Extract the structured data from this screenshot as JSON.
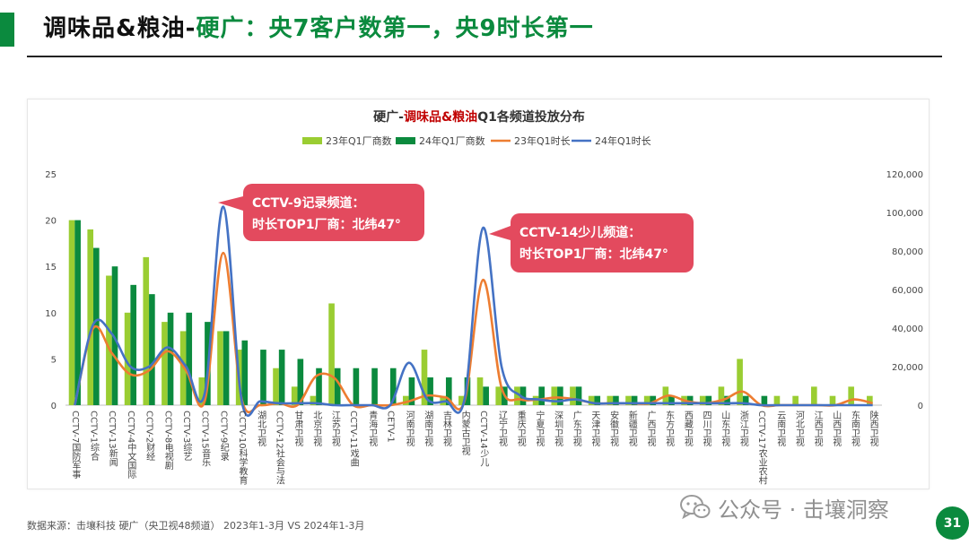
{
  "header": {
    "title_main": "调味品&粮油-",
    "title_sub": "硬广：央7客户数第一，央9时长第一"
  },
  "footer": {
    "source": "数据来源：击壤科技   硬广（央卫视48频道）   2023年1-3月 VS 2024年1-3月",
    "watermark": "公众号 · 击壤洞察",
    "page_number": "31"
  },
  "colors": {
    "accent": "#0b8a3e",
    "bar_2023": "#9acd32",
    "bar_2024": "#0b8a3e",
    "line_2023": "#ed7d31",
    "line_2024": "#4472c4",
    "callout": "#e34a5e",
    "title_highlight": "#c00000"
  },
  "chart_data": {
    "type": "bar",
    "title_prefix": "硬广-",
    "title_highlight": "调味品&粮油",
    "title_suffix": "Q1各频道投放分布",
    "legend": [
      "23年Q1厂商数",
      "24年Q1厂商数",
      "23年Q1时长",
      "24年Q1时长"
    ],
    "legend_position": "top",
    "y_left": {
      "min": 0,
      "max": 25,
      "ticks": [
        "0",
        "5",
        "10",
        "15",
        "20",
        "25"
      ]
    },
    "y_right": {
      "min": 0,
      "max": 120000,
      "ticks": [
        "0",
        "20,000",
        "40,000",
        "60,000",
        "80,000",
        "100,000",
        "120,000"
      ]
    },
    "categories": [
      "CCTV-7国防军事",
      "CCTV-1综合",
      "CCTV-13新闻",
      "CCTV-4中文国际",
      "CCTV-2财经",
      "CCTV-8电视剧",
      "CCTV-3综艺",
      "CCTV-15音乐",
      "CCTV-9纪录",
      "CCTV-10科学教育",
      "湖北卫视",
      "CCTV-12社会与法",
      "甘肃卫视",
      "北京卫视",
      "江苏卫视",
      "CCTV-11戏曲",
      "青海卫视",
      "CETV-1",
      "河南卫视",
      "湖南卫视",
      "吉林卫视",
      "内蒙古卫视",
      "CCTV-14少儿",
      "辽宁卫视",
      "重庆卫视",
      "宁夏卫视",
      "深圳卫视",
      "广东卫视",
      "天津卫视",
      "安徽卫视",
      "新疆卫视",
      "广西卫视",
      "东方卫视",
      "西藏卫视",
      "四川卫视",
      "山东卫视",
      "浙江卫视",
      "CCTV-17农业农村",
      "云南卫视",
      "河北卫视",
      "江西卫视",
      "山西卫视",
      "东南卫视",
      "陕西卫视"
    ],
    "series": [
      {
        "name": "23年Q1厂商数",
        "type": "bar",
        "axis": "left",
        "values": [
          20,
          19,
          14,
          10,
          16,
          9,
          8,
          3,
          8,
          6,
          0,
          4,
          2,
          1,
          11,
          0,
          0,
          0,
          1,
          6,
          1,
          1,
          3,
          2,
          2,
          1,
          2,
          2,
          1,
          1,
          1,
          1,
          2,
          1,
          1,
          2,
          5,
          0,
          1,
          1,
          2,
          1,
          2,
          1
        ]
      },
      {
        "name": "24年Q1厂商数",
        "type": "bar",
        "axis": "left",
        "values": [
          20,
          17,
          15,
          13,
          12,
          10,
          10,
          9,
          8,
          7,
          6,
          6,
          5,
          4,
          4,
          4,
          4,
          4,
          3,
          3,
          3,
          3,
          2,
          2,
          2,
          2,
          2,
          2,
          1,
          1,
          1,
          1,
          1,
          1,
          1,
          1,
          1,
          1,
          0,
          0,
          0,
          0,
          0,
          0
        ]
      },
      {
        "name": "23年Q1时长",
        "type": "line",
        "axis": "right",
        "values": [
          0,
          40000,
          27000,
          16000,
          18000,
          28000,
          18000,
          2000,
          79000,
          3000,
          0,
          1000,
          0,
          15000,
          14000,
          0,
          0,
          0,
          2000,
          5000,
          4000,
          2000,
          65000,
          9000,
          3000,
          3000,
          4000,
          3000,
          1000,
          1000,
          1000,
          1000,
          5000,
          2000,
          1000,
          3000,
          7000,
          0,
          0,
          0,
          0,
          0,
          3000,
          1000
        ]
      },
      {
        "name": "24年Q1时长",
        "type": "line",
        "axis": "right",
        "values": [
          0,
          42000,
          37000,
          20000,
          20000,
          30000,
          20000,
          6000,
          103000,
          2000,
          2000,
          1000,
          1000,
          1000,
          0,
          0,
          0,
          0,
          22000,
          3000,
          2000,
          3000,
          92000,
          20000,
          5000,
          3000,
          2000,
          3000,
          1000,
          1000,
          1000,
          1000,
          1000,
          1000,
          1000,
          1000,
          1000,
          0,
          0,
          0,
          0,
          0,
          0,
          0
        ]
      }
    ],
    "annotations": [
      {
        "line1": "CCTV-9记录频道：",
        "line2": "时长TOP1厂商：北纬47°",
        "category": "CCTV-9纪录",
        "series": "24年Q1时长"
      },
      {
        "line1": "CCTV-14少儿频道：",
        "line2": "时长TOP1厂商：北纬47°",
        "category": "CCTV-14少儿",
        "series": "24年Q1时长"
      }
    ]
  }
}
